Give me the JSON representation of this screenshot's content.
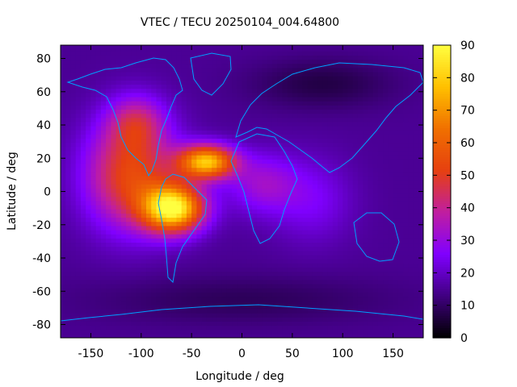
{
  "chart_data": {
    "type": "heatmap",
    "title": "VTEC / TECU 20250104_004.64800",
    "xlabel": "Longitude / deg",
    "ylabel": "Latitude / deg",
    "xlim": [
      -180,
      180
    ],
    "ylim": [
      -88,
      88
    ],
    "x_ticks": [
      -150,
      -100,
      -50,
      0,
      50,
      100,
      150
    ],
    "y_ticks": [
      -80,
      -60,
      -40,
      -20,
      0,
      20,
      40,
      60,
      80
    ],
    "colorbar": {
      "range": [
        0,
        90
      ],
      "ticks": [
        0,
        10,
        20,
        30,
        40,
        50,
        60,
        70,
        80,
        90
      ],
      "palette": [
        "#000000",
        "#400080",
        "#8000ff",
        "#c01ea0",
        "#e64010",
        "#f07000",
        "#ffc000",
        "#ffff40"
      ]
    },
    "grid": false,
    "description_of_field": "Ionospheric vertical total electron content map with a daytime equatorial maximum centred near longitude -65, latitude -10 (about 85-90 TECU) and a secondary crest near longitude -40, latitude 20; background values 10-25 TECU.",
    "peaks": [
      {
        "lon": -68,
        "lat": -10,
        "value": 90
      },
      {
        "lon": -35,
        "lat": 18,
        "value": 85
      },
      {
        "lon": -110,
        "lat": 35,
        "value": 55
      }
    ]
  }
}
